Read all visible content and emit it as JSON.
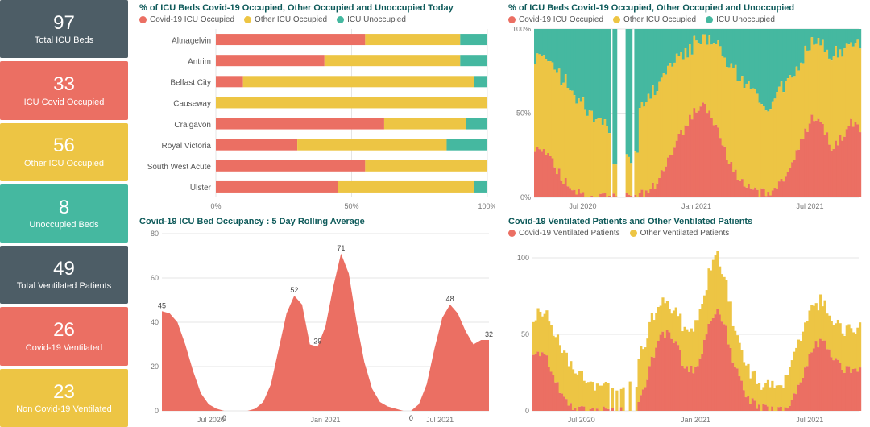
{
  "colors": {
    "slate": "#4d5d66",
    "red": "#eb6f63",
    "yellow": "#edc544",
    "teal": "#45b8a0",
    "title": "#0e5a5a",
    "grid": "#e5e5e5",
    "bg": "#ffffff",
    "text": "#777777"
  },
  "kpis": [
    {
      "value": "97",
      "label": "Total ICU Beds",
      "colorKey": "slate"
    },
    {
      "value": "33",
      "label": "ICU Covid Occupied",
      "colorKey": "red"
    },
    {
      "value": "56",
      "label": "Other ICU Occupied",
      "colorKey": "yellow"
    },
    {
      "value": "8",
      "label": "Unoccupied Beds",
      "colorKey": "teal"
    },
    {
      "value": "49",
      "label": "Total Ventilated Patients",
      "colorKey": "slate"
    },
    {
      "value": "26",
      "label": "Covid-19 Ventilated",
      "colorKey": "red"
    },
    {
      "value": "23",
      "label": "Non Covid-19 Ventilated",
      "colorKey": "yellow"
    }
  ],
  "stackedBars": {
    "title": "% of ICU Beds Covid-19 Occupied, Other Occupied and Unoccupied Today",
    "legend": [
      "Covid-19 ICU Occupied",
      "Other ICU Occupied",
      "ICU Unoccupied"
    ],
    "legendColors": [
      "red",
      "yellow",
      "teal"
    ],
    "xticks": [
      "0%",
      "50%",
      "100%"
    ],
    "rows": [
      {
        "name": "Altnagelvin",
        "segs": [
          55,
          35,
          10
        ]
      },
      {
        "name": "Antrim",
        "segs": [
          40,
          50,
          10
        ]
      },
      {
        "name": "Belfast City",
        "segs": [
          10,
          85,
          5
        ]
      },
      {
        "name": "Causeway",
        "segs": [
          0,
          100,
          0
        ]
      },
      {
        "name": "Craigavon",
        "segs": [
          62,
          30,
          8
        ]
      },
      {
        "name": "Royal Victoria",
        "segs": [
          30,
          55,
          15
        ]
      },
      {
        "name": "South West Acute",
        "segs": [
          55,
          45,
          0
        ]
      },
      {
        "name": "Ulster",
        "segs": [
          45,
          50,
          5
        ]
      }
    ]
  },
  "timeAxis": {
    "labels": [
      "Jul 2020",
      "Jan 2021",
      "Jul 2021"
    ],
    "positions": [
      0.15,
      0.5,
      0.85
    ]
  },
  "stackedAreaPct": {
    "title": "% of ICU Beds Covid-19 Occupied, Other Occupied and Unoccupied",
    "legend": [
      "Covid-19 ICU Occupied",
      "Other ICU Occupied",
      "ICU Unoccupied"
    ],
    "legendColors": [
      "red",
      "yellow",
      "teal"
    ],
    "yticks": [
      "0%",
      "50%",
      "100%"
    ],
    "gapBand": [
      0.23,
      0.32
    ],
    "redSeries": [
      30,
      28,
      20,
      10,
      5,
      2,
      0,
      0,
      0,
      0,
      0,
      0,
      3,
      8,
      18,
      30,
      40,
      50,
      55,
      48,
      35,
      20,
      10,
      5,
      3,
      2,
      5,
      12,
      25,
      38,
      48,
      42,
      30,
      35,
      45,
      40
    ],
    "yellowSeries": [
      55,
      55,
      58,
      60,
      58,
      55,
      48,
      45,
      40,
      40,
      42,
      48,
      55,
      58,
      55,
      50,
      45,
      40,
      40,
      45,
      52,
      58,
      62,
      60,
      55,
      50,
      55,
      55,
      50,
      47,
      45,
      48,
      55,
      52,
      48,
      50
    ]
  },
  "rollingArea": {
    "title": "Covid-19 ICU Bed Occupancy : 5 Day Rolling Average",
    "ymax": 80,
    "ytick": 20,
    "color": "red",
    "series": [
      45,
      44,
      40,
      30,
      18,
      8,
      3,
      1,
      0,
      0,
      0,
      0,
      1,
      4,
      12,
      28,
      44,
      52,
      48,
      30,
      29,
      38,
      56,
      71,
      62,
      40,
      22,
      10,
      4,
      2,
      1,
      0,
      0,
      3,
      12,
      28,
      42,
      48,
      44,
      36,
      30,
      32,
      32
    ],
    "peaks": [
      {
        "i": 0,
        "v": 45,
        "label": "45"
      },
      {
        "i": 8,
        "v": 0,
        "label": "0",
        "below": true
      },
      {
        "i": 17,
        "v": 52,
        "label": "52"
      },
      {
        "i": 20,
        "v": 29,
        "label": "29"
      },
      {
        "i": 23,
        "v": 71,
        "label": "71"
      },
      {
        "i": 32,
        "v": 0,
        "label": "0",
        "below": true
      },
      {
        "i": 37,
        "v": 48,
        "label": "48"
      },
      {
        "i": 42,
        "v": 32,
        "label": "32"
      }
    ]
  },
  "ventilated": {
    "title": "Covid-19 Ventilated Patients and Other Ventilated Patients",
    "legend": [
      "Covid-19 Ventilated Patients",
      "Other Ventilated Patients"
    ],
    "legendColors": [
      "red",
      "yellow"
    ],
    "ymax": 110,
    "yticks": [
      0,
      50,
      100
    ],
    "gapBand": [
      0.23,
      0.32
    ],
    "redSeries": [
      40,
      38,
      30,
      18,
      8,
      3,
      1,
      0,
      0,
      0,
      0,
      0,
      2,
      6,
      18,
      35,
      48,
      52,
      45,
      28,
      26,
      36,
      55,
      68,
      58,
      35,
      18,
      8,
      3,
      1,
      0,
      0,
      2,
      10,
      25,
      40,
      46,
      42,
      32,
      26,
      28,
      28
    ],
    "yellowSeries": [
      25,
      26,
      28,
      30,
      28,
      25,
      20,
      16,
      14,
      14,
      16,
      22,
      28,
      30,
      28,
      25,
      22,
      18,
      20,
      24,
      28,
      30,
      33,
      36,
      32,
      26,
      22,
      20,
      16,
      14,
      14,
      16,
      22,
      28,
      30,
      28,
      26,
      24,
      24,
      26,
      26,
      26
    ]
  }
}
